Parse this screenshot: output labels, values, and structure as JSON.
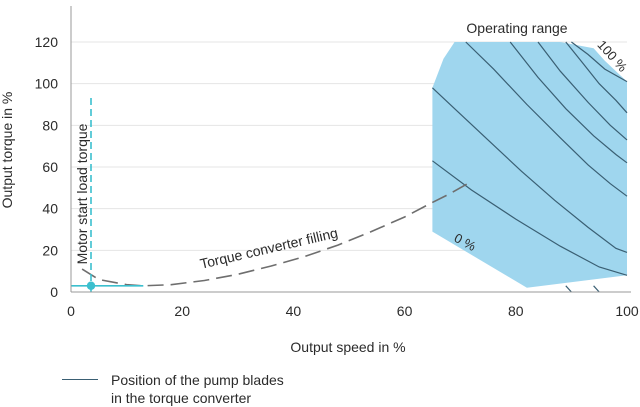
{
  "chart_data": {
    "type": "line",
    "xlabel": "Output speed in %",
    "ylabel": "Output torque in %",
    "xlim": [
      0,
      100
    ],
    "ylim": [
      0,
      120
    ],
    "x_ticks": [
      0,
      20,
      40,
      60,
      80,
      100
    ],
    "y_ticks": [
      0,
      20,
      40,
      60,
      80,
      100,
      120
    ],
    "grid": "horizontal",
    "annotations": {
      "operating_range": "Operating range",
      "pct_100": "100 %",
      "pct_0": "0 %",
      "filling": "Torque converter filling",
      "motor_start": "Motor start load torque"
    },
    "regions": [
      {
        "name": "Operating range",
        "color": "#9fd6ee",
        "points": [
          [
            65,
            29
          ],
          [
            82,
            2
          ],
          [
            100,
            8
          ],
          [
            100,
            101
          ],
          [
            96,
            111
          ],
          [
            94,
            117
          ],
          [
            88,
            120
          ],
          [
            69,
            120
          ],
          [
            67,
            112
          ],
          [
            65,
            98
          ]
        ]
      }
    ],
    "series": [
      {
        "name": "Torque converter filling",
        "style": "dashed",
        "color": "#6e6e6e",
        "points": [
          [
            2,
            11
          ],
          [
            5,
            6
          ],
          [
            10,
            3.5
          ],
          [
            13,
            3
          ],
          [
            18,
            3.5
          ],
          [
            24,
            5.5
          ],
          [
            30,
            8.5
          ],
          [
            36,
            12.5
          ],
          [
            42,
            17
          ],
          [
            48,
            22.5
          ],
          [
            54,
            29
          ],
          [
            60,
            36
          ],
          [
            65,
            43
          ],
          [
            68,
            47
          ],
          [
            72,
            53
          ]
        ]
      },
      {
        "name": "Motor start load torque",
        "style": "dashed",
        "color": "#3bbfce",
        "points": [
          [
            3.6,
            0
          ],
          [
            3.6,
            95
          ]
        ]
      },
      {
        "name": "Motor start",
        "style": "solid",
        "color": "#3bbfce",
        "points": [
          [
            0,
            3
          ],
          [
            13,
            3
          ]
        ]
      }
    ],
    "pump_blade_lines": [
      [
        [
          65,
          63
        ],
        [
          72,
          49
        ],
        [
          80,
          35
        ],
        [
          88,
          22
        ],
        [
          95,
          12
        ],
        [
          100,
          8
        ]
      ],
      [
        [
          65,
          98
        ],
        [
          69,
          88
        ],
        [
          75,
          73
        ],
        [
          81,
          58
        ],
        [
          87,
          44
        ],
        [
          93,
          31
        ],
        [
          98,
          21
        ],
        [
          100,
          19
        ]
      ],
      [
        [
          71,
          120
        ],
        [
          76,
          107
        ],
        [
          82,
          90
        ],
        [
          88,
          74
        ],
        [
          93,
          61
        ],
        [
          97,
          52
        ],
        [
          100,
          46
        ]
      ],
      [
        [
          79,
          120
        ],
        [
          84,
          103
        ],
        [
          89,
          88
        ],
        [
          94,
          75
        ],
        [
          98,
          66
        ],
        [
          100,
          62
        ]
      ],
      [
        [
          84,
          120
        ],
        [
          88,
          106
        ],
        [
          93,
          91
        ],
        [
          97,
          80
        ],
        [
          100,
          73
        ]
      ],
      [
        [
          89,
          120
        ],
        [
          92,
          110
        ],
        [
          95,
          100
        ],
        [
          98,
          92
        ],
        [
          100,
          86
        ]
      ],
      [
        [
          90,
          120
        ],
        [
          93,
          114
        ],
        [
          96,
          107
        ],
        [
          100,
          101
        ]
      ],
      [
        [
          89,
          3
        ],
        [
          90,
          0
        ]
      ],
      [
        [
          94,
          3
        ],
        [
          95,
          0
        ]
      ]
    ],
    "marker": {
      "x": 3.6,
      "y": 3,
      "color": "#3bbfce"
    },
    "legend": [
      {
        "line1": "Position of the pump blades",
        "line2": "in the torque converter",
        "color": "#3a5f73"
      }
    ]
  }
}
